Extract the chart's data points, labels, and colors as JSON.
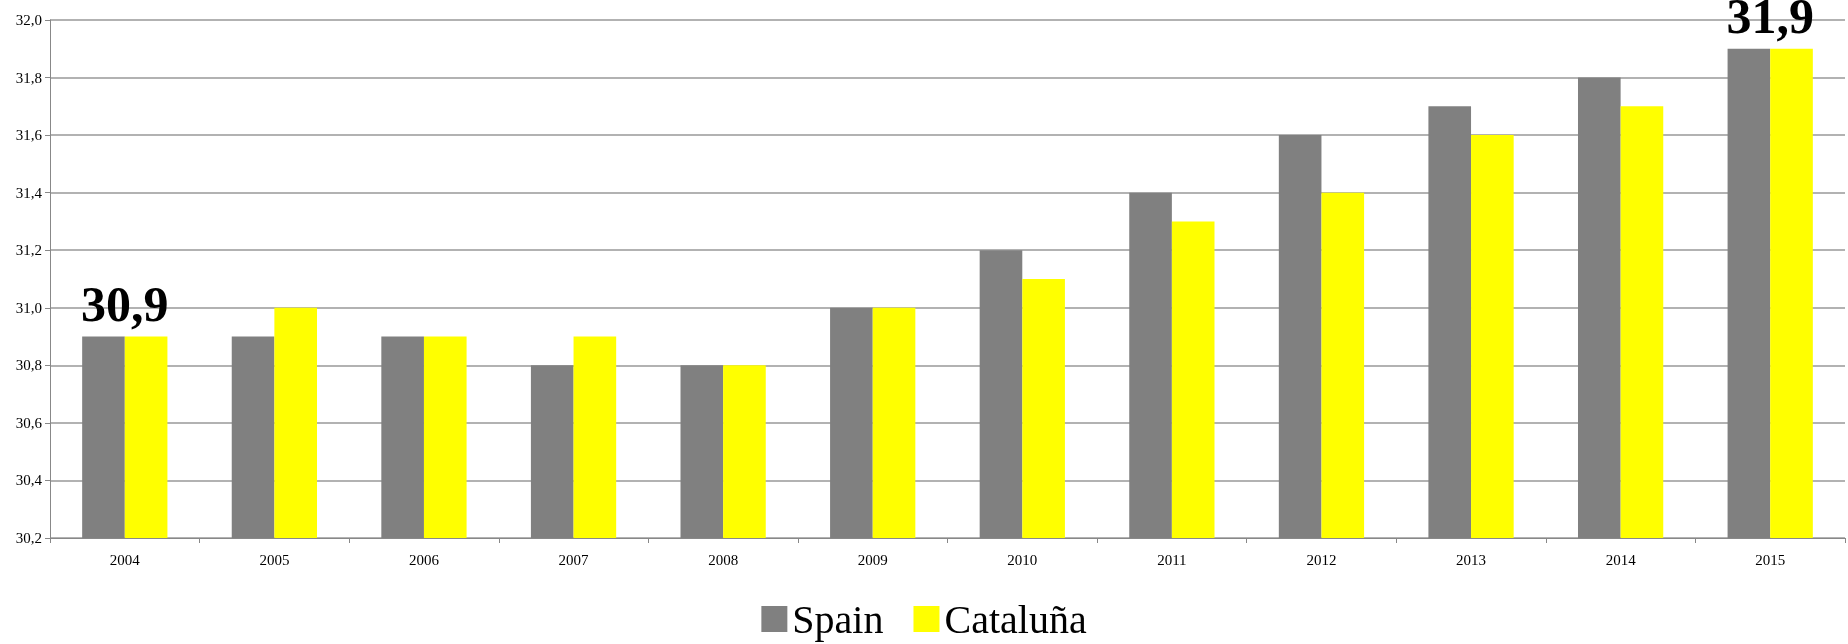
{
  "chart_data": {
    "type": "bar",
    "categories": [
      "2004",
      "2005",
      "2006",
      "2007",
      "2008",
      "2009",
      "2010",
      "2011",
      "2012",
      "2013",
      "2014",
      "2015"
    ],
    "series": [
      {
        "name": "Spain",
        "color": "#808080",
        "values": [
          30.9,
          30.9,
          30.9,
          30.8,
          30.8,
          31.0,
          31.2,
          31.4,
          31.6,
          31.7,
          31.8,
          31.9
        ]
      },
      {
        "name": "Cataluña",
        "color": "#ffff00",
        "values": [
          30.9,
          31.0,
          30.9,
          30.9,
          30.8,
          31.0,
          31.1,
          31.3,
          31.4,
          31.6,
          31.7,
          31.9
        ]
      }
    ],
    "ylim": [
      30.2,
      32.0
    ],
    "yticks": [
      {
        "value": 30.2,
        "label": "30,2"
      },
      {
        "value": 30.4,
        "label": "30,4"
      },
      {
        "value": 30.6,
        "label": "30,6"
      },
      {
        "value": 30.8,
        "label": "30,8"
      },
      {
        "value": 31.0,
        "label": "31,0"
      },
      {
        "value": 31.2,
        "label": "31,2"
      },
      {
        "value": 31.4,
        "label": "31,4"
      },
      {
        "value": 31.6,
        "label": "31,6"
      },
      {
        "value": 31.8,
        "label": "31,8"
      },
      {
        "value": 32.0,
        "label": "32,0"
      }
    ],
    "grid": "y",
    "legend": "bottom",
    "annotations": [
      {
        "text": "30,9",
        "x": "2004",
        "y": 30.9
      },
      {
        "text": "31,9",
        "x": "2015",
        "y": 31.9
      }
    ]
  }
}
